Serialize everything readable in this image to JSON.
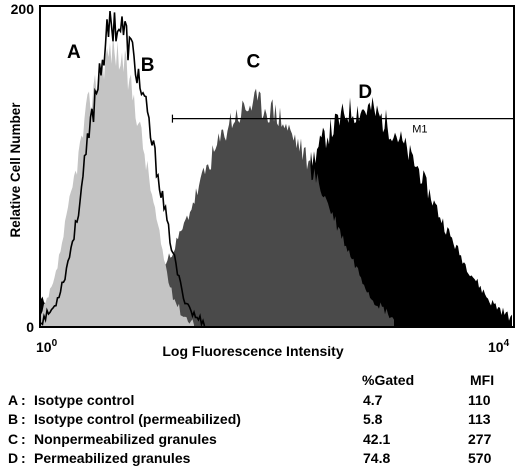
{
  "chart_data": {
    "type": "area",
    "xlabel": "Log Fluorescence Intensity",
    "ylabel": "Relative Cell Number",
    "x_scale": "log",
    "xlim": [
      1,
      10000
    ],
    "ylim": [
      0,
      200
    ],
    "x_ticks": [
      {
        "value": 1,
        "base": "10",
        "exp": "0"
      },
      {
        "value": 10000,
        "base": "10",
        "exp": "4"
      }
    ],
    "y_ticks": [
      {
        "value": 200,
        "label": "200"
      },
      {
        "value": 0,
        "label": "0"
      }
    ],
    "gate": {
      "label": "M1",
      "x_start": 13,
      "x_end": 10000,
      "y": 130
    },
    "series": [
      {
        "name": "A",
        "style": "light-gray-fill",
        "color": "#c4c4c4",
        "x": [
          1.0,
          1.3,
          1.6,
          2.0,
          2.5,
          3.2,
          4.0,
          5.0,
          6.3,
          7.9,
          10,
          12.6,
          15.8,
          20
        ],
        "y": [
          6,
          28,
          62,
          100,
          138,
          162,
          175,
          165,
          140,
          100,
          58,
          22,
          7,
          2
        ],
        "peak_label": {
          "x": 1.9,
          "y": 168
        }
      },
      {
        "name": "B",
        "style": "black-outline",
        "color": "#000000",
        "x": [
          1.0,
          1.3,
          1.6,
          2.0,
          2.5,
          3.2,
          4.0,
          5.0,
          6.3,
          7.9,
          10,
          12.6,
          15.8,
          20,
          25
        ],
        "y": [
          3,
          12,
          32,
          65,
          115,
          165,
          192,
          185,
          165,
          132,
          92,
          52,
          20,
          6,
          2
        ],
        "peak_label": {
          "x": 8.0,
          "y": 160
        }
      },
      {
        "name": "C",
        "style": "dark-gray-fill",
        "color": "#4a4a4a",
        "x": [
          4,
          6.3,
          10,
          15.8,
          25,
          40,
          63,
          100,
          158,
          251,
          398,
          631,
          1000
        ],
        "y": [
          2,
          10,
          30,
          60,
          98,
          128,
          140,
          133,
          112,
          82,
          48,
          18,
          4
        ],
        "peak_label": {
          "x": 63,
          "y": 162
        }
      },
      {
        "name": "D",
        "style": "black-fill",
        "color": "#000000",
        "x": [
          1,
          2,
          4,
          10,
          25,
          63,
          100,
          158,
          251,
          398,
          631,
          1000,
          1585,
          2512,
          3981,
          6310,
          10000
        ],
        "y": [
          16,
          18,
          17,
          18,
          22,
          40,
          60,
          90,
          118,
          135,
          136,
          122,
          98,
          66,
          38,
          16,
          4
        ],
        "peak_label": {
          "x": 560,
          "y": 143
        }
      }
    ]
  },
  "stats": {
    "headers": {
      "gated": "%Gated",
      "mfi": "MFI"
    },
    "rows": [
      {
        "letter": "A",
        "desc": "Isotype control",
        "gated": "4.7",
        "mfi": "110"
      },
      {
        "letter": "B",
        "desc": "Isotype control (permeabilized)",
        "gated": "5.8",
        "mfi": "113"
      },
      {
        "letter": "C",
        "desc": "Nonpermeabilized granules",
        "gated": "42.1",
        "mfi": "277"
      },
      {
        "letter": "D",
        "desc": "Permeabilized granules",
        "gated": "74.8",
        "mfi": "570"
      }
    ]
  }
}
